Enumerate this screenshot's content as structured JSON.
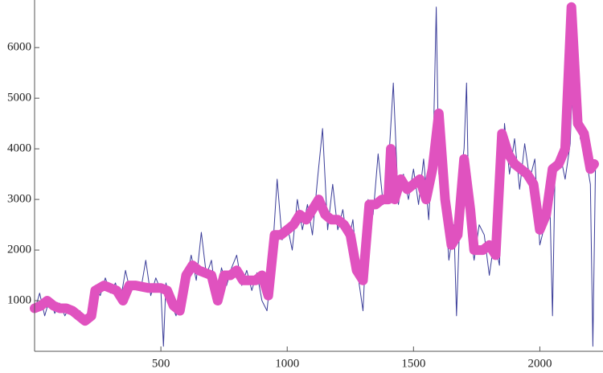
{
  "chart_data": {
    "type": "line",
    "xlim": [
      0,
      2250
    ],
    "ylim": [
      0,
      6940
    ],
    "xticks": [
      500,
      1000,
      1500,
      2000
    ],
    "yticks": [
      1000,
      2000,
      3000,
      4000,
      5000,
      6000
    ],
    "series": [
      {
        "color": "#3b3d99",
        "width": 1,
        "x": [
          0,
          20,
          40,
          60,
          80,
          100,
          120,
          140,
          160,
          180,
          200,
          220,
          240,
          260,
          280,
          300,
          320,
          340,
          360,
          380,
          400,
          420,
          440,
          460,
          480,
          500,
          510,
          520,
          540,
          560,
          580,
          600,
          620,
          640,
          660,
          680,
          700,
          720,
          740,
          760,
          780,
          800,
          820,
          840,
          860,
          880,
          900,
          920,
          940,
          960,
          980,
          1000,
          1020,
          1040,
          1060,
          1080,
          1100,
          1120,
          1140,
          1160,
          1180,
          1200,
          1220,
          1240,
          1260,
          1280,
          1300,
          1320,
          1340,
          1360,
          1380,
          1400,
          1420,
          1440,
          1460,
          1480,
          1500,
          1520,
          1540,
          1560,
          1580,
          1590,
          1600,
          1620,
          1640,
          1660,
          1670,
          1690,
          1700,
          1710,
          1720,
          1740,
          1760,
          1780,
          1800,
          1820,
          1840,
          1860,
          1880,
          1900,
          1920,
          1940,
          1960,
          1980,
          2000,
          2020,
          2040,
          2050,
          2060,
          2080,
          2100,
          2120,
          2140,
          2160,
          2180,
          2200,
          2210,
          2220
        ],
        "values": [
          800,
          1150,
          700,
          1050,
          750,
          950,
          700,
          900,
          650,
          800,
          550,
          650,
          1300,
          1100,
          1450,
          1150,
          1350,
          1000,
          1600,
          1150,
          1350,
          1200,
          1800,
          1100,
          1450,
          1200,
          100,
          1350,
          950,
          700,
          1300,
          1400,
          1900,
          1400,
          2350,
          1500,
          1800,
          1000,
          1650,
          1300,
          1650,
          1900,
          1300,
          1600,
          1200,
          1550,
          1000,
          800,
          1800,
          3400,
          2200,
          2500,
          2000,
          3000,
          2400,
          2900,
          2300,
          3400,
          4400,
          2400,
          3300,
          2400,
          2800,
          2100,
          2600,
          1500,
          800,
          3000,
          2700,
          3900,
          2900,
          3600,
          5300,
          2900,
          3500,
          3000,
          3600,
          2900,
          3800,
          2600,
          4500,
          6800,
          3500,
          3200,
          1800,
          2500,
          700,
          3600,
          4000,
          5300,
          2500,
          1800,
          2500,
          2300,
          1500,
          2200,
          1700,
          4500,
          3500,
          4200,
          3200,
          4100,
          3400,
          3800,
          2100,
          2500,
          2900,
          700,
          3500,
          3900,
          3400,
          4100,
          6800,
          4200,
          3900,
          3300,
          100,
          3600
        ]
      },
      {
        "color": "#e052bf",
        "width": 12,
        "x": [
          0,
          25,
          50,
          75,
          100,
          125,
          150,
          175,
          200,
          225,
          240,
          275,
          300,
          325,
          350,
          375,
          400,
          450,
          500,
          525,
          550,
          575,
          600,
          625,
          650,
          675,
          700,
          725,
          750,
          775,
          800,
          825,
          850,
          875,
          900,
          925,
          950,
          975,
          1000,
          1025,
          1050,
          1075,
          1100,
          1125,
          1150,
          1175,
          1200,
          1225,
          1250,
          1275,
          1300,
          1325,
          1350,
          1375,
          1400,
          1410,
          1425,
          1450,
          1475,
          1500,
          1525,
          1550,
          1575,
          1600,
          1625,
          1650,
          1675,
          1700,
          1725,
          1740,
          1775,
          1800,
          1825,
          1850,
          1875,
          1900,
          1925,
          1950,
          1975,
          2000,
          2025,
          2050,
          2075,
          2100,
          2125,
          2150,
          2175,
          2200,
          2215
        ],
        "values": [
          850,
          900,
          1000,
          900,
          850,
          850,
          800,
          700,
          600,
          700,
          1200,
          1300,
          1250,
          1200,
          1000,
          1300,
          1300,
          1250,
          1250,
          1200,
          900,
          800,
          1500,
          1700,
          1600,
          1550,
          1500,
          1000,
          1500,
          1500,
          1600,
          1400,
          1400,
          1400,
          1500,
          1100,
          2300,
          2300,
          2400,
          2500,
          2700,
          2600,
          2800,
          3000,
          2700,
          2600,
          2600,
          2500,
          2300,
          1600,
          1400,
          2900,
          2900,
          3000,
          3000,
          4000,
          3000,
          3400,
          3200,
          3300,
          3400,
          3000,
          3600,
          4700,
          3000,
          2100,
          2300,
          3800,
          2800,
          2000,
          2000,
          2100,
          1900,
          4300,
          3900,
          3700,
          3600,
          3500,
          3300,
          2400,
          2700,
          3600,
          3700,
          4000,
          6800,
          4500,
          4300,
          3600,
          3700
        ]
      }
    ]
  }
}
